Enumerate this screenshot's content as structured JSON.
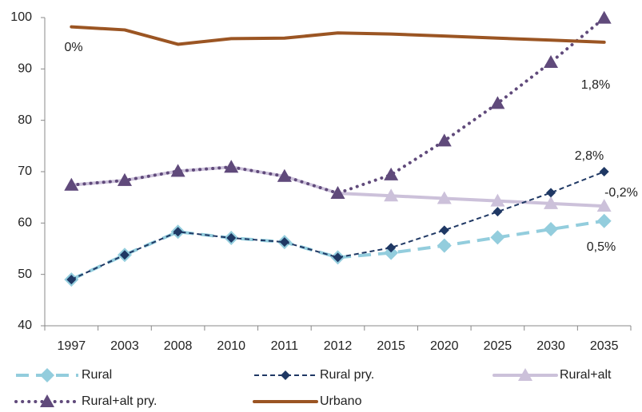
{
  "chart_data": {
    "type": "line",
    "categories": [
      "1997",
      "2003",
      "2008",
      "2010",
      "2011",
      "2012",
      "2015",
      "2020",
      "2025",
      "2030",
      "2035"
    ],
    "ylim": [
      40,
      100
    ],
    "yticks": [
      40,
      50,
      60,
      70,
      80,
      90,
      100
    ],
    "grid": false,
    "legend": "bottom",
    "series": [
      {
        "name": "Rural",
        "color": "#93cddd",
        "line_style": "dashed",
        "marker": "diamond",
        "values": [
          49.0,
          53.8,
          58.3,
          57.1,
          56.3,
          53.3,
          54.2,
          55.6,
          57.2,
          58.8,
          60.4
        ]
      },
      {
        "name": "Rural pry.",
        "color": "#1f3864",
        "line_style": "short-dashed",
        "marker": "small-diamond",
        "values": [
          49.0,
          53.8,
          58.3,
          57.1,
          56.3,
          53.3,
          55.2,
          58.6,
          62.2,
          65.9,
          70.0
        ]
      },
      {
        "name": "Rural+alt",
        "color": "#ccc1da",
        "line_style": "solid",
        "marker": "triangle",
        "values": [
          67.4,
          68.3,
          70.1,
          70.9,
          69.1,
          65.8,
          65.3,
          64.8,
          64.3,
          63.8,
          63.3
        ]
      },
      {
        "name": "Rural+alt pry.",
        "color": "#604a7b",
        "line_style": "dotted",
        "marker": "triangle",
        "values": [
          67.4,
          68.3,
          70.1,
          70.9,
          69.1,
          65.8,
          69.4,
          76.0,
          83.3,
          91.3,
          99.9
        ]
      },
      {
        "name": "Urbano",
        "color": "#9b5523",
        "line_style": "solid",
        "marker": "none",
        "values": [
          98.2,
          97.6,
          94.8,
          95.9,
          96.0,
          97.0,
          96.8,
          96.4,
          96.0,
          95.6,
          95.2
        ]
      }
    ],
    "annotations": [
      "0%",
      "1,8%",
      "2,8%",
      "-0,2%",
      "0,5%"
    ]
  }
}
